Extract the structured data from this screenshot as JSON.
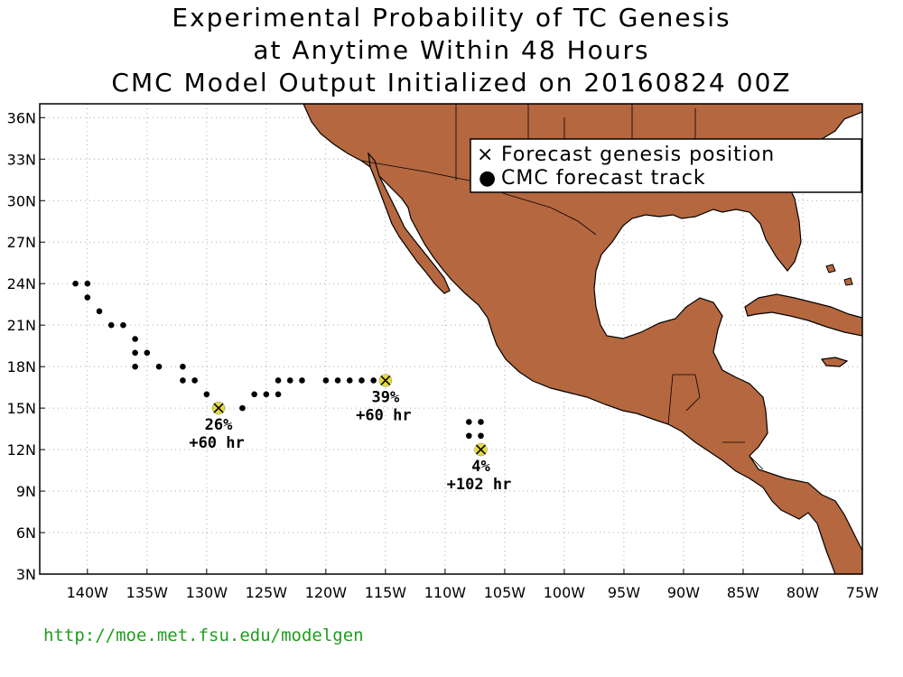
{
  "title": {
    "line1": "Experimental Probability of TC Genesis",
    "line2": "at Anytime Within 48 Hours",
    "line3": "CMC Model Output Initialized on 20160824 00Z"
  },
  "legend": {
    "genesis_label": "Forecast genesis position",
    "track_label": "CMC forecast track",
    "genesis_symbol": "×",
    "track_symbol": "●"
  },
  "colors": {
    "land": "#b5673f",
    "genesis_marker": "#e6dc3c",
    "url": "#1f9e1f"
  },
  "map": {
    "lon_range": [
      -144,
      -75
    ],
    "lat_range": [
      3,
      37
    ],
    "lon_ticks": [
      "140W",
      "135W",
      "130W",
      "125W",
      "120W",
      "115W",
      "110W",
      "105W",
      "100W",
      "95W",
      "90W",
      "85W",
      "80W",
      "75W"
    ],
    "lon_tick_values": [
      -140,
      -135,
      -130,
      -125,
      -120,
      -115,
      -110,
      -105,
      -100,
      -95,
      -90,
      -85,
      -80,
      -75
    ],
    "lat_ticks": [
      "36N",
      "33N",
      "30N",
      "27N",
      "24N",
      "21N",
      "18N",
      "15N",
      "12N",
      "9N",
      "6N",
      "3N"
    ],
    "lat_tick_values": [
      36,
      33,
      30,
      27,
      24,
      21,
      18,
      15,
      12,
      9,
      6,
      3
    ],
    "grid": true
  },
  "genesis_points": [
    {
      "lon": -129,
      "lat": 15,
      "prob": "26%",
      "lead": "+60 hr"
    },
    {
      "lon": -115,
      "lat": 17,
      "prob": "39%",
      "lead": "+60 hr"
    },
    {
      "lon": -107,
      "lat": 12,
      "prob": "4%",
      "lead": "+102 hr"
    }
  ],
  "track_points": [
    [
      -141,
      24
    ],
    [
      -140,
      24
    ],
    [
      -140,
      23
    ],
    [
      -139,
      22
    ],
    [
      -138,
      21
    ],
    [
      -137,
      21
    ],
    [
      -136,
      20
    ],
    [
      -136,
      19
    ],
    [
      -135,
      19
    ],
    [
      -136,
      18
    ],
    [
      -134,
      18
    ],
    [
      -132,
      18
    ],
    [
      -132,
      17
    ],
    [
      -131,
      17
    ],
    [
      -130,
      16
    ],
    [
      -127,
      15
    ],
    [
      -126,
      16
    ],
    [
      -125,
      16
    ],
    [
      -124,
      16
    ],
    [
      -124,
      17
    ],
    [
      -123,
      17
    ],
    [
      -122,
      17
    ],
    [
      -120,
      17
    ],
    [
      -119,
      17
    ],
    [
      -118,
      17
    ],
    [
      -117,
      17
    ],
    [
      -116,
      17
    ],
    [
      -108,
      14
    ],
    [
      -107,
      14
    ],
    [
      -108,
      13
    ],
    [
      -107,
      13
    ]
  ],
  "url": "http://moe.met.fsu.edu/modelgen"
}
